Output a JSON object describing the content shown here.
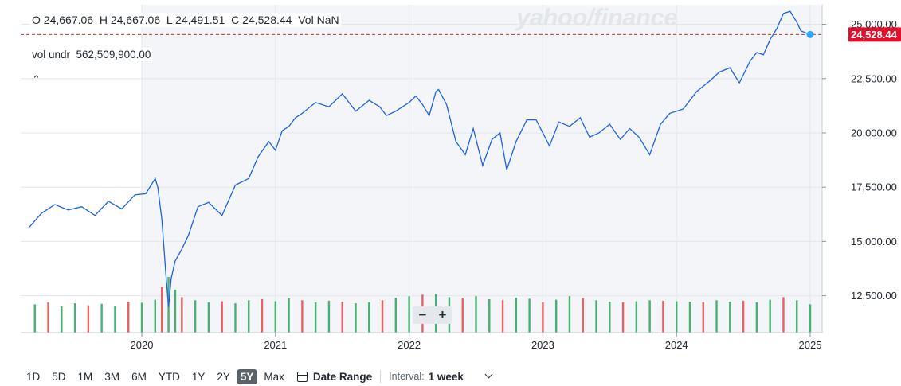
{
  "ohlc": {
    "open": "O 24,667.06",
    "high": "H 24,667.06",
    "low": "L 24,491.51",
    "close": "C 24,528.44",
    "vol": "Vol NaN"
  },
  "volume_legend": "vol undr  562,509,900.00",
  "watermark": "yahoo/finance",
  "zoom": {
    "minus": "−",
    "plus": "+"
  },
  "range_buttons": [
    "1D",
    "5D",
    "1M",
    "3M",
    "6M",
    "YTD",
    "1Y",
    "2Y",
    "5Y",
    "Max"
  ],
  "selected_range": "5Y",
  "date_range_label": "Date Range",
  "interval": {
    "label": "Interval:",
    "value": "1 week"
  },
  "colors": {
    "line": "#1d62e6",
    "last_price_marker": "#2fa8ff",
    "last_price_badge": "#e0102a",
    "volume_up": "#2aa35a",
    "volume_down": "#e04848",
    "plot_background": "#f3f5f8"
  },
  "chart_data": {
    "type": "line",
    "x_ticks": [
      "2020",
      "2021",
      "2022",
      "2023",
      "2024",
      "2025"
    ],
    "y_ticks": [
      "12,500.00",
      "15,000.00",
      "17,500.00",
      "20,000.00",
      "22,500.00",
      "25,000.00"
    ],
    "ylim": [
      10800,
      25900
    ],
    "last_price_label": "24,528.44",
    "last_price": 24528.44,
    "price_series": {
      "x": [
        2019.15,
        2019.25,
        2019.35,
        2019.45,
        2019.55,
        2019.65,
        2019.75,
        2019.85,
        2019.95,
        2020.03,
        2020.1,
        2020.12,
        2020.15,
        2020.18,
        2020.2,
        2020.22,
        2020.25,
        2020.3,
        2020.35,
        2020.42,
        2020.5,
        2020.6,
        2020.7,
        2020.8,
        2020.87,
        2020.95,
        2021.0,
        2021.05,
        2021.1,
        2021.15,
        2021.2,
        2021.3,
        2021.4,
        2021.5,
        2021.6,
        2021.7,
        2021.78,
        2021.83,
        2021.9,
        2022.0,
        2022.05,
        2022.1,
        2022.15,
        2022.2,
        2022.22,
        2022.28,
        2022.35,
        2022.42,
        2022.48,
        2022.55,
        2022.62,
        2022.68,
        2022.73,
        2022.8,
        2022.88,
        2022.95,
        2023.05,
        2023.12,
        2023.2,
        2023.28,
        2023.35,
        2023.42,
        2023.5,
        2023.58,
        2023.65,
        2023.72,
        2023.8,
        2023.88,
        2023.95,
        2024.05,
        2024.15,
        2024.25,
        2024.32,
        2024.4,
        2024.47,
        2024.55,
        2024.6,
        2024.65,
        2024.7,
        2024.75,
        2024.8,
        2024.85,
        2024.9,
        2024.93,
        2024.97,
        2025.0
      ],
      "y": [
        15600,
        16300,
        16700,
        16450,
        16600,
        16200,
        16850,
        16500,
        17150,
        17200,
        17900,
        17500,
        16000,
        13500,
        12000,
        13300,
        14100,
        14650,
        15300,
        16600,
        16800,
        16200,
        17600,
        17900,
        18900,
        19600,
        19200,
        20100,
        20300,
        20700,
        20900,
        21400,
        21200,
        21800,
        21000,
        21500,
        21200,
        20800,
        21000,
        21400,
        21700,
        21300,
        20800,
        21900,
        22000,
        21300,
        19600,
        19000,
        20200,
        18500,
        19700,
        20000,
        18300,
        19600,
        20600,
        20600,
        19400,
        20500,
        20300,
        20700,
        19800,
        20000,
        20400,
        19700,
        20200,
        19800,
        19000,
        20400,
        20900,
        21100,
        21900,
        22400,
        22800,
        23000,
        22300,
        23300,
        23700,
        23600,
        24300,
        24800,
        25500,
        25600,
        25100,
        24700,
        24600,
        24528
      ]
    },
    "volume_series": {
      "x": [
        2019.2,
        2019.3,
        2019.4,
        2019.5,
        2019.6,
        2019.7,
        2019.8,
        2019.9,
        2020.0,
        2020.1,
        2020.15,
        2020.2,
        2020.25,
        2020.3,
        2020.4,
        2020.5,
        2020.6,
        2020.7,
        2020.8,
        2020.9,
        2021.0,
        2021.1,
        2021.2,
        2021.3,
        2021.4,
        2021.5,
        2021.6,
        2021.7,
        2021.8,
        2021.9,
        2022.0,
        2022.1,
        2022.2,
        2022.3,
        2022.4,
        2022.5,
        2022.6,
        2022.7,
        2022.8,
        2022.9,
        2023.0,
        2023.1,
        2023.2,
        2023.3,
        2023.4,
        2023.5,
        2023.6,
        2023.7,
        2023.8,
        2023.9,
        2024.0,
        2024.1,
        2024.2,
        2024.3,
        2024.4,
        2024.5,
        2024.6,
        2024.7,
        2024.8,
        2024.9,
        2025.0
      ],
      "y": [
        560,
        600,
        520,
        580,
        540,
        570,
        530,
        610,
        590,
        650,
        900,
        1100,
        850,
        700,
        640,
        600,
        620,
        580,
        640,
        660,
        620,
        680,
        640,
        600,
        630,
        610,
        580,
        600,
        640,
        690,
        720,
        750,
        760,
        700,
        680,
        720,
        660,
        640,
        690,
        670,
        600,
        650,
        720,
        680,
        640,
        610,
        600,
        620,
        640,
        630,
        620,
        610,
        600,
        640,
        610,
        630,
        600,
        650,
        700,
        640,
        560
      ]
    }
  }
}
